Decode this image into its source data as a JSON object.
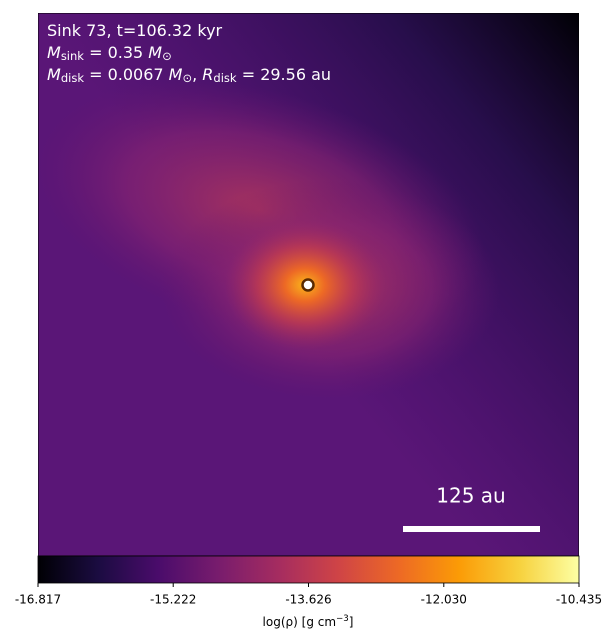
{
  "chart_data": {
    "type": "image",
    "annotations": [
      [
        {
          "text": "Sink 73, t=106.32 kyr"
        }
      ],
      [
        {
          "text": "M"
        },
        {
          "text": "sink",
          "sub": true
        },
        {
          "text": " = 0.35 "
        },
        {
          "text": "M"
        },
        {
          "text": "⊙",
          "sub": true
        }
      ],
      [
        {
          "text": "M"
        },
        {
          "text": "disk",
          "sub": true
        },
        {
          "text": " = 0.0067 "
        },
        {
          "text": "M"
        },
        {
          "text": "⊙",
          "sub": true
        },
        {
          "text": ", "
        },
        {
          "text": "R"
        },
        {
          "text": "disk",
          "sub": true
        },
        {
          "text": " = 29.56 au"
        }
      ]
    ],
    "scale_bar": "125 au",
    "colorbar": {
      "label": [
        {
          "text": "log(ρ) [g cm"
        },
        {
          "text": "−3",
          "sup": true
        },
        {
          "text": "]"
        }
      ],
      "clim": [
        -16.817,
        -10.435
      ],
      "ticks": [
        -16.817,
        -15.222,
        -13.626,
        -12.03,
        -10.435
      ],
      "colormap": [
        "#000004",
        "#1b0c41",
        "#4a0c6b",
        "#781c6d",
        "#a52c60",
        "#cf4446",
        "#ed6925",
        "#fb9b06",
        "#f7d13d",
        "#fcffa4"
      ]
    }
  }
}
